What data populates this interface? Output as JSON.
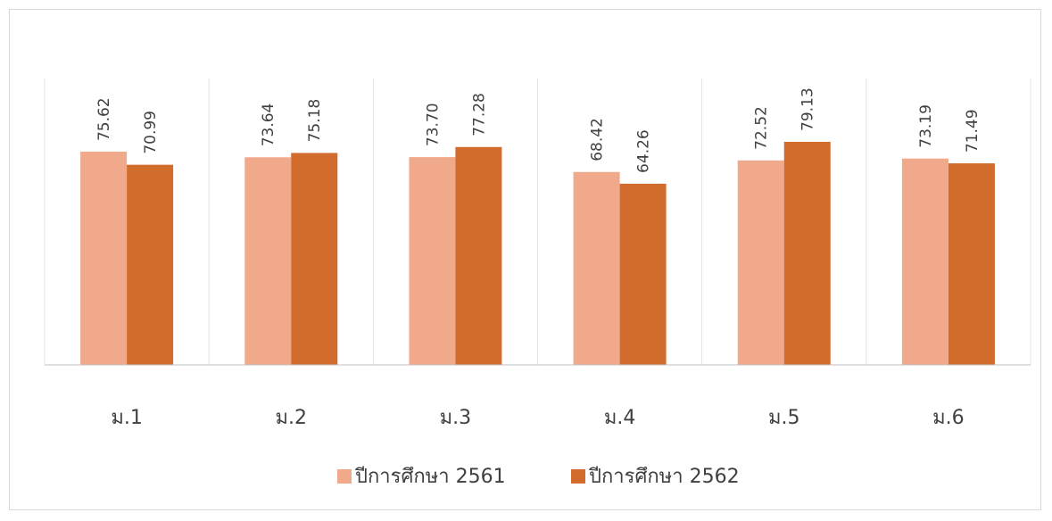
{
  "chart_data": {
    "type": "bar",
    "categories": [
      "ม.1",
      "ม.2",
      "ม.3",
      "ม.4",
      "ม.5",
      "ม.6"
    ],
    "series": [
      {
        "name": "ปีการศึกษา 2561",
        "color": "#f0a98a",
        "values": [
          75.62,
          73.64,
          73.7,
          68.42,
          72.52,
          73.19
        ],
        "labels": [
          "75.62",
          "73.64",
          "73.70",
          "68.42",
          "72.52",
          "73.19"
        ]
      },
      {
        "name": "ปีการศึกษา 2562",
        "color": "#d26c2c",
        "values": [
          70.99,
          75.18,
          77.28,
          64.26,
          79.13,
          71.49
        ],
        "labels": [
          "70.99",
          "75.18",
          "77.28",
          "64.26",
          "79.13",
          "71.49"
        ]
      }
    ],
    "ylim": [
      0,
      100
    ],
    "grid": "vertical category separators",
    "legend": "bottom-center",
    "data_labels": "rotated vertical above bars"
  }
}
